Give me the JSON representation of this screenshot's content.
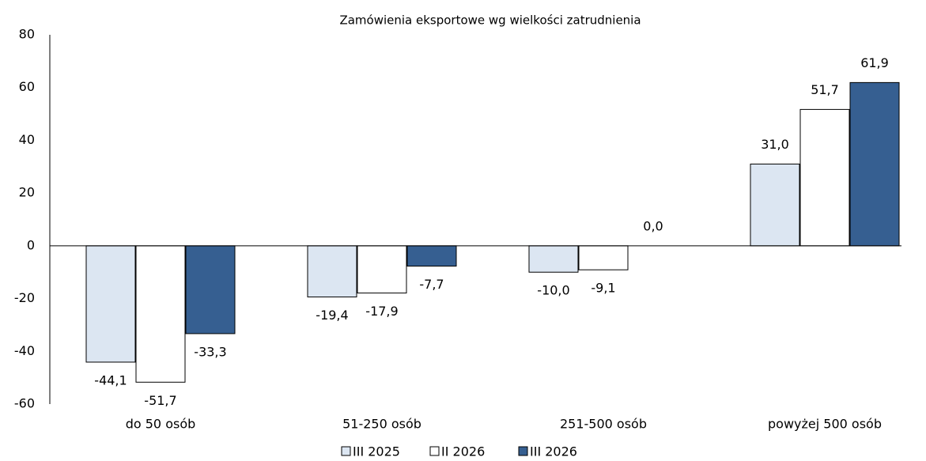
{
  "chart_data": {
    "type": "bar",
    "title": "Zamówienia eksportowe wg wielkości zatrudnienia",
    "categories": [
      "do 50 osób",
      "51-250 osób",
      "251-500 osób",
      "powyżej 500 osób"
    ],
    "series": [
      {
        "name": "III 2025",
        "color": "#dce6f2",
        "values": [
          -44.1,
          -19.4,
          -10.0,
          31.0
        ],
        "value_labels": [
          "-44,1",
          "-19,4",
          "-10,0",
          "31,0"
        ]
      },
      {
        "name": "II 2026",
        "color": "#ffffff",
        "values": [
          -51.7,
          -17.9,
          -9.1,
          51.7
        ],
        "value_labels": [
          "-51,7",
          "-17,9",
          "-9,1",
          "51,7"
        ]
      },
      {
        "name": "III 2026",
        "color": "#365f91",
        "values": [
          -33.3,
          -7.7,
          0.0,
          61.9
        ],
        "value_labels": [
          "-33,3",
          "-7,7",
          "0,0",
          "61,9"
        ]
      }
    ],
    "ylim": [
      -60,
      80
    ],
    "yticks": [
      -60,
      -40,
      -20,
      0,
      20,
      40,
      60,
      80
    ],
    "grid": false,
    "legend": "bottom"
  }
}
